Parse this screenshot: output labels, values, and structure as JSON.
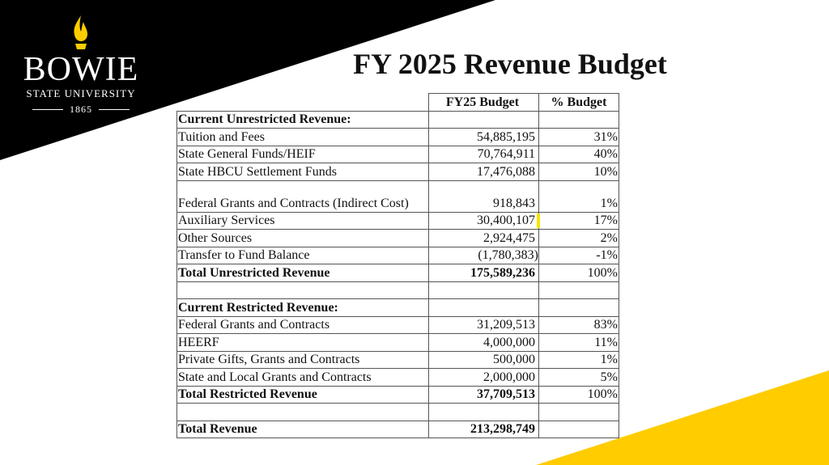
{
  "branding": {
    "word": "BOWIE",
    "subtitle": "STATE UNIVERSITY",
    "year": "1865"
  },
  "title": "FY 2025 Revenue Budget",
  "table": {
    "header": {
      "label": "",
      "amount": "FY25 Budget",
      "percent": "% Budget"
    },
    "rows": [
      {
        "label": "Current Unrestricted Revenue:",
        "amount": "",
        "percent": ""
      },
      {
        "label": "Tuition and Fees",
        "amount": "54,885,195",
        "percent": "31%"
      },
      {
        "label": "State General Funds/HEIF",
        "amount": "70,764,911",
        "percent": "40%"
      },
      {
        "label": "State HBCU Settlement Funds",
        "amount": "17,476,088",
        "percent": "10%"
      },
      {
        "label": "Federal Grants and Contracts (Indirect Cost)",
        "amount": "918,843",
        "percent": "1%"
      },
      {
        "label": "Auxiliary Services",
        "amount": "30,400,107",
        "percent": "17%"
      },
      {
        "label": "Other Sources",
        "amount": "2,924,475",
        "percent": "2%"
      },
      {
        "label": "Transfer to Fund Balance",
        "amount": "(1,780,383)",
        "percent": "-1%"
      },
      {
        "label": "Total Unrestricted Revenue",
        "amount": "175,589,236",
        "percent": "100%"
      },
      {
        "label": "",
        "amount": "",
        "percent": ""
      },
      {
        "label": "Current Restricted Revenue:",
        "amount": "",
        "percent": ""
      },
      {
        "label": "Federal Grants and Contracts",
        "amount": "31,209,513",
        "percent": "83%"
      },
      {
        "label": "HEERF",
        "amount": "4,000,000",
        "percent": "11%"
      },
      {
        "label": "Private Gifts, Grants and Contracts",
        "amount": "500,000",
        "percent": "1%"
      },
      {
        "label": "State and Local Grants and Contracts",
        "amount": "2,000,000",
        "percent": "5%"
      },
      {
        "label": "Total Restricted Revenue",
        "amount": "37,709,513",
        "percent": "100%"
      },
      {
        "label": "",
        "amount": "",
        "percent": ""
      },
      {
        "label": "Total Revenue",
        "amount": "213,298,749",
        "percent": ""
      }
    ]
  },
  "colors": {
    "black": "#000000",
    "yellow": "#ffcc00",
    "text": "#111111"
  }
}
